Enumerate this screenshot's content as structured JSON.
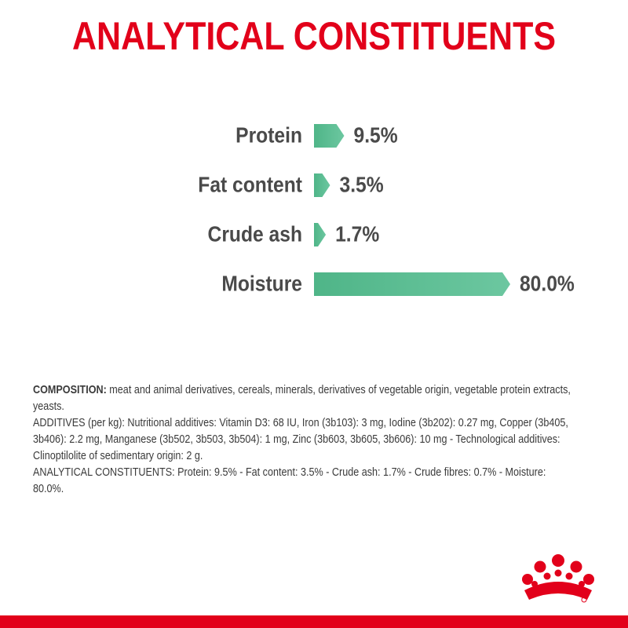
{
  "chart_data": {
    "type": "bar",
    "orientation": "horizontal",
    "title": "ANALYTICAL CONSTITUENTS",
    "categories": [
      "Protein",
      "Fat content",
      "Crude ash",
      "Moisture"
    ],
    "values": [
      9.5,
      3.5,
      1.7,
      80.0
    ],
    "value_labels": [
      "9.5%",
      "3.5%",
      "1.7%",
      "80.0%"
    ],
    "color": "#5cbf95"
  },
  "composition": {
    "label": "COMPOSITION:",
    "text": "meat and animal derivatives, cereals, minerals, derivatives of vegetable origin, vegetable protein extracts, yeasts.",
    "additives": "ADDITIVES (per kg): Nutritional additives: Vitamin D3: 68 IU, Iron (3b103): 3 mg, Iodine (3b202): 0.27 mg, Copper (3b405, 3b406): 2.2 mg, Manganese (3b502, 3b503, 3b504): 1 mg, Zinc (3b603, 3b605, 3b606): 10 mg - Technological additives: Clinoptilolite of sedimentary origin: 2 g.",
    "analytical": "ANALYTICAL CONSTITUENTS: Protein: 9.5% - Fat content: 3.5% - Crude ash: 1.7% - Crude fibres: 0.7% - Moisture: 80.0%."
  }
}
